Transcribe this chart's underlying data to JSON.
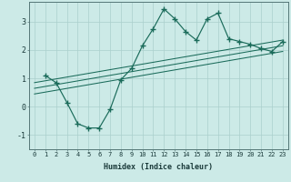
{
  "xlabel": "Humidex (Indice chaleur)",
  "bg_color": "#cceae7",
  "line_color": "#1a6b5a",
  "grid_color": "#aacfcc",
  "xlim": [
    -0.5,
    23.5
  ],
  "ylim": [
    -1.5,
    3.7
  ],
  "xticks": [
    0,
    1,
    2,
    3,
    4,
    5,
    6,
    7,
    8,
    9,
    10,
    11,
    12,
    13,
    14,
    15,
    16,
    17,
    18,
    19,
    20,
    21,
    22,
    23
  ],
  "yticks": [
    -1,
    0,
    1,
    2,
    3
  ],
  "curve_x": [
    1,
    2,
    3,
    4,
    5,
    6,
    7,
    8,
    9,
    10,
    11,
    12,
    13,
    14,
    15,
    16,
    17,
    18,
    19,
    20,
    21,
    22,
    23
  ],
  "curve_y": [
    1.1,
    0.85,
    0.15,
    -0.6,
    -0.75,
    -0.75,
    -0.1,
    0.95,
    1.35,
    2.15,
    2.75,
    3.45,
    3.1,
    2.65,
    2.35,
    3.1,
    3.3,
    2.4,
    2.3,
    2.2,
    2.05,
    1.95,
    2.3
  ],
  "line1_x": [
    0,
    23
  ],
  "line1_y": [
    0.85,
    2.35
  ],
  "line2_x": [
    0,
    23
  ],
  "line2_y": [
    0.65,
    2.15
  ],
  "line3_x": [
    0,
    23
  ],
  "line3_y": [
    0.45,
    1.95
  ],
  "xlabel_fontsize": 6,
  "tick_fontsize": 5
}
